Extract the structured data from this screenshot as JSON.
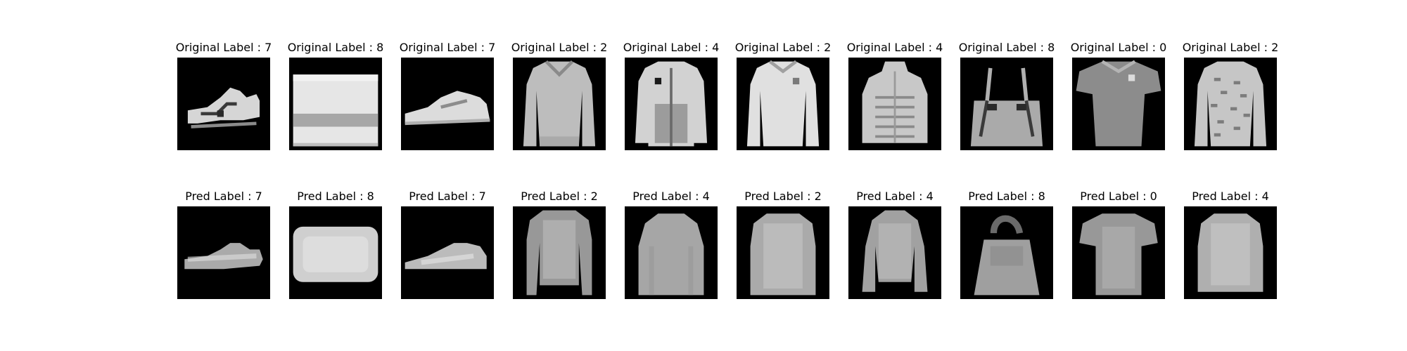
{
  "rows": [
    {
      "name": "original",
      "panels": [
        {
          "title": "Original Label : 7",
          "item": "sneaker"
        },
        {
          "title": "Original Label : 8",
          "item": "bag"
        },
        {
          "title": "Original Label : 7",
          "item": "sneaker"
        },
        {
          "title": "Original Label : 2",
          "item": "pullover"
        },
        {
          "title": "Original Label : 4",
          "item": "coat"
        },
        {
          "title": "Original Label : 2",
          "item": "pullover"
        },
        {
          "title": "Original Label : 4",
          "item": "coat"
        },
        {
          "title": "Original Label : 8",
          "item": "bag"
        },
        {
          "title": "Original Label : 0",
          "item": "t-shirt"
        },
        {
          "title": "Original Label : 2",
          "item": "pullover"
        }
      ]
    },
    {
      "name": "predicted",
      "panels": [
        {
          "title": "Pred Label : 7",
          "item": "sneaker"
        },
        {
          "title": "Pred Label : 8",
          "item": "bag"
        },
        {
          "title": "Pred Label : 7",
          "item": "sneaker"
        },
        {
          "title": "Pred Label : 2",
          "item": "pullover"
        },
        {
          "title": "Pred Label : 4",
          "item": "coat"
        },
        {
          "title": "Pred Label : 2",
          "item": "pullover"
        },
        {
          "title": "Pred Label : 4",
          "item": "coat"
        },
        {
          "title": "Pred Label : 8",
          "item": "bag"
        },
        {
          "title": "Pred Label : 0",
          "item": "t-shirt"
        },
        {
          "title": "Pred Label : 4",
          "item": "coat"
        }
      ]
    }
  ]
}
